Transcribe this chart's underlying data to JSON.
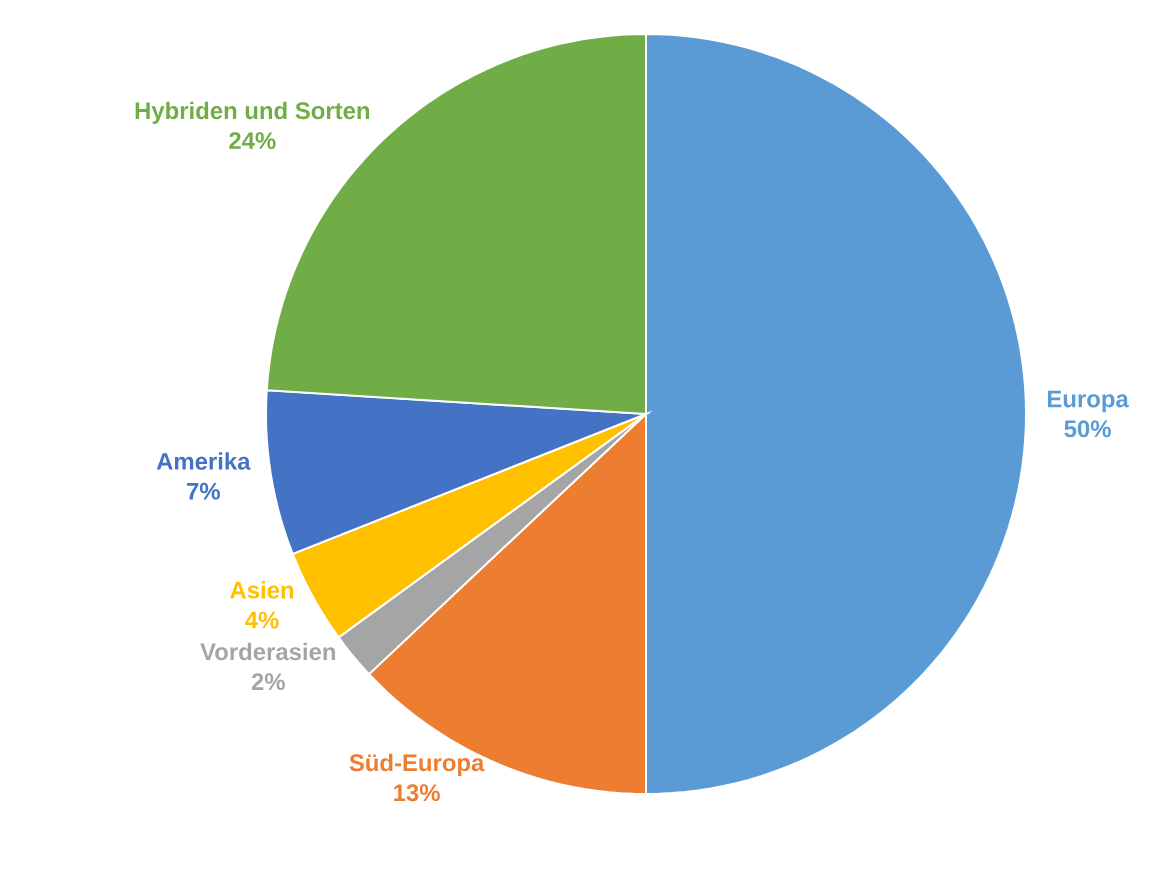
{
  "chart_data": {
    "type": "pie",
    "categories": [
      "Europa",
      "Süd-Europa",
      "Vorderasien",
      "Asien",
      "Amerika",
      "Hybriden und Sorten"
    ],
    "values": [
      50,
      13,
      2,
      4,
      7,
      24
    ],
    "value_labels": [
      "50%",
      "13%",
      "2%",
      "4%",
      "7%",
      "24%"
    ],
    "colors": [
      "#5b9bd5",
      "#ed7d31",
      "#a5a5a5",
      "#ffc000",
      "#4472c4",
      "#70ad47"
    ]
  }
}
